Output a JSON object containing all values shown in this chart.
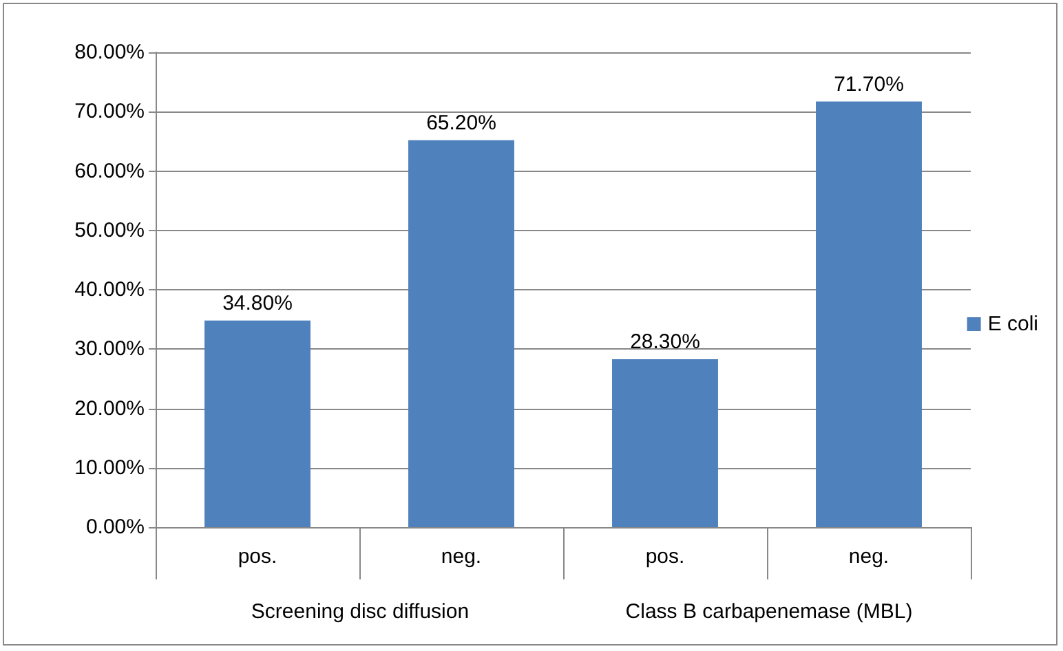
{
  "chart_data": {
    "type": "bar",
    "categories": [
      "pos.",
      "neg.",
      "pos.",
      "neg."
    ],
    "series": [
      {
        "name": "E coli",
        "color": "#4f81bd",
        "values": [
          34.8,
          65.2,
          28.3,
          71.7
        ],
        "value_labels": [
          "34.80%",
          "65.20%",
          "28.30%",
          "71.70%"
        ]
      }
    ],
    "ylim": [
      0,
      80
    ],
    "yticks": [
      {
        "value": 0,
        "label": "0.00%"
      },
      {
        "value": 10,
        "label": "10.00%"
      },
      {
        "value": 20,
        "label": "20.00%"
      },
      {
        "value": 30,
        "label": "30.00%"
      },
      {
        "value": 40,
        "label": "40.00%"
      },
      {
        "value": 50,
        "label": "50.00%"
      },
      {
        "value": 60,
        "label": "60.00%"
      },
      {
        "value": 70,
        "label": "70.00%"
      },
      {
        "value": 80,
        "label": "80.00%"
      }
    ],
    "annotations": [
      "Screening disc diffusion",
      "Class B carbapenemase (MBL)"
    ],
    "grid": "y",
    "legend": "right"
  }
}
